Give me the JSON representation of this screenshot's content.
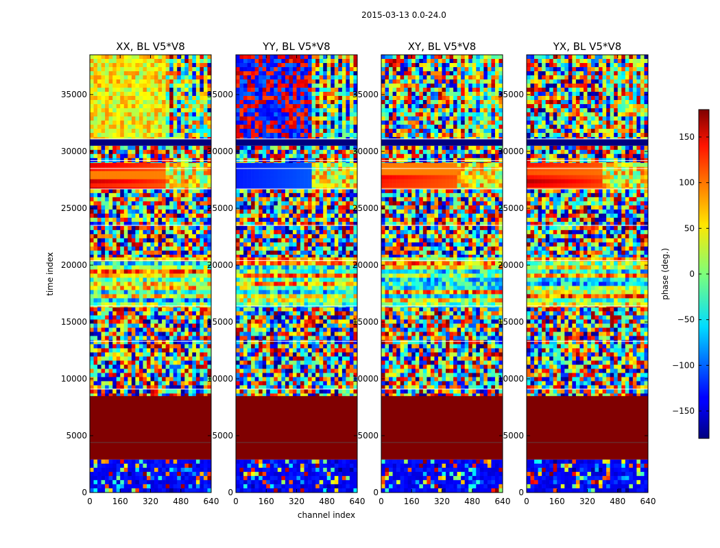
{
  "figure": {
    "suptitle": "2015-03-13 0.0-24.0"
  },
  "chart_data": {
    "type": "heatmap",
    "panels": [
      {
        "title": "XX, BL V5*V8",
        "key": "XX"
      },
      {
        "title": "YY, BL V5*V8",
        "key": "YY"
      },
      {
        "title": "XY, BL V5*V8",
        "key": "XY"
      },
      {
        "title": "YX, BL V5*V8",
        "key": "YX"
      }
    ],
    "xlabel": "channel index",
    "ylabel": "time index",
    "xlim": [
      0,
      640
    ],
    "ylim": [
      0,
      38500
    ],
    "xticks": [
      0,
      160,
      320,
      480,
      640
    ],
    "yticks": [
      0,
      5000,
      10000,
      15000,
      20000,
      25000,
      30000,
      35000
    ],
    "colorbar": {
      "label": "phase (deg.)",
      "range": [
        -180,
        180
      ],
      "ticks": [
        -150,
        -100,
        -50,
        0,
        50,
        100,
        150
      ],
      "colormap": "jet"
    }
  }
}
